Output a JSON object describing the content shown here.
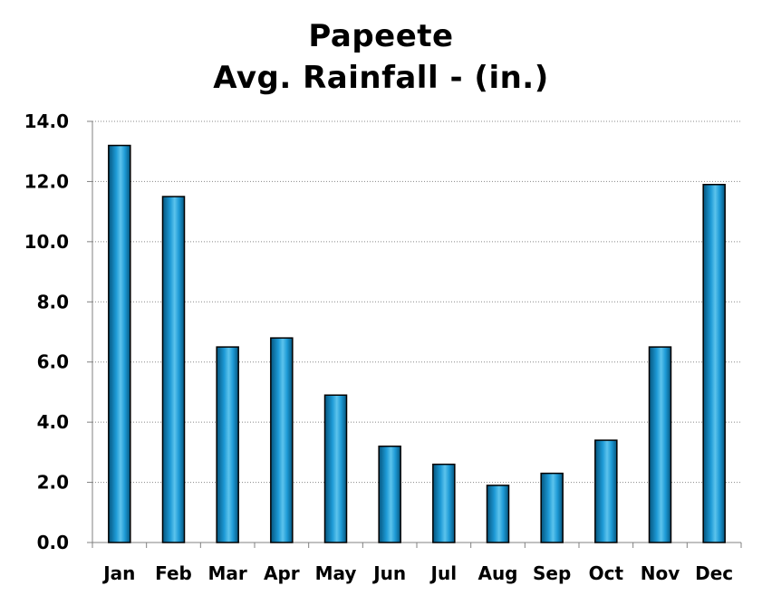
{
  "chart_data": {
    "type": "bar",
    "title": [
      "Papeete",
      "Avg. Rainfall - (in.)"
    ],
    "categories": [
      "Jan",
      "Feb",
      "Mar",
      "Apr",
      "May",
      "Jun",
      "Jul",
      "Aug",
      "Sep",
      "Oct",
      "Nov",
      "Dec"
    ],
    "values": [
      13.2,
      11.5,
      6.5,
      6.8,
      4.9,
      3.2,
      2.6,
      1.9,
      2.3,
      3.4,
      6.5,
      11.9
    ],
    "ylim": [
      0,
      14
    ],
    "yticks": [
      "0.0",
      "2.0",
      "4.0",
      "6.0",
      "8.0",
      "10.0",
      "12.0",
      "14.0"
    ],
    "grid": true,
    "legend": "none",
    "colors": {
      "bar_light": "#5cc3ec",
      "bar_mid": "#1d9ad6",
      "bar_dark": "#05557d",
      "bar_border": "#000000",
      "grid": "#888888",
      "axis": "#808080"
    }
  }
}
